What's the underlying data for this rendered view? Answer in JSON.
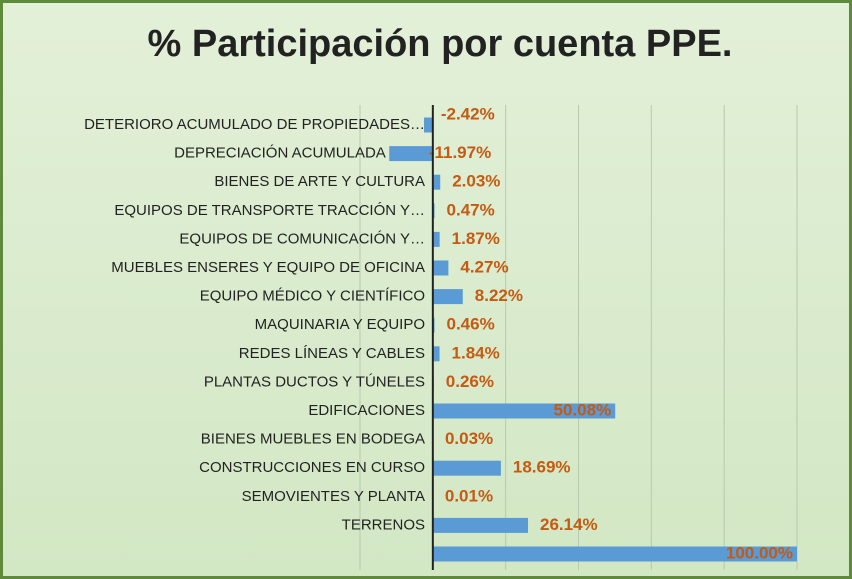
{
  "chart_data": {
    "type": "bar",
    "orientation": "horizontal",
    "title": "% Participación por cuenta PPE.",
    "categories": [
      "DETERIORO ACUMULADO DE PROPIEDADES…",
      "DEPRECIACIÓN ACUMULADA DE…",
      "BIENES DE ARTE Y CULTURA",
      "EQUIPOS DE TRANSPORTE  TRACCIÓN Y…",
      "EQUIPOS DE COMUNICACIÓN Y…",
      "MUEBLES  ENSERES Y EQUIPO DE OFICINA",
      "EQUIPO MÉDICO Y CIENTÍFICO",
      "MAQUINARIA Y EQUIPO",
      "REDES  LÍNEAS Y CABLES",
      "PLANTAS  DUCTOS Y TÚNELES",
      "EDIFICACIONES",
      "BIENES MUEBLES EN BODEGA",
      "CONSTRUCCIONES EN CURSO",
      "SEMOVIENTES Y PLANTA",
      "TERRENOS",
      null
    ],
    "values": [
      -2.42,
      -11.97,
      2.03,
      0.47,
      1.87,
      4.27,
      8.22,
      0.46,
      1.84,
      0.26,
      50.08,
      0.03,
      18.69,
      0.01,
      26.14,
      100.0
    ],
    "value_labels": [
      "-2.42%",
      "-11.97%",
      "2.03%",
      "0.47%",
      "1.87%",
      "4.27%",
      "8.22%",
      "0.46%",
      "1.84%",
      "0.26%",
      "50.08%",
      "0.03%",
      "18.69%",
      "0.01%",
      "26.14%",
      "100.00%"
    ],
    "color": "#5b9bd5",
    "label_color": "#c55a11",
    "xlim": [
      -20,
      100
    ],
    "xticks": [
      -20,
      0,
      20,
      40,
      60,
      80,
      100
    ],
    "grid": true
  }
}
